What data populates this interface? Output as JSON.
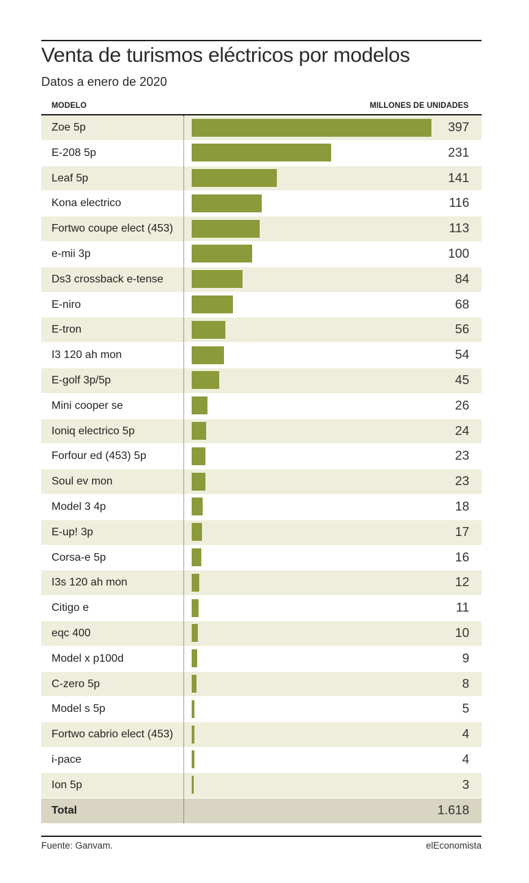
{
  "title": "Venta de turismos eléctricos por modelos",
  "subtitle": "Datos a enero de 2020",
  "column_headers": {
    "model": "MODELO",
    "units": "MILLONES DE UNIDADES"
  },
  "footer": {
    "source": "Fuente: Ganvam.",
    "brand": "elEconomista"
  },
  "colors": {
    "bar": "#8b9a3b",
    "row_alt": "#efeedc",
    "total_row": "#d8d6c2"
  },
  "chart_data": {
    "type": "bar",
    "orientation": "horizontal",
    "title": "Venta de turismos eléctricos por modelos",
    "subtitle": "Datos a enero de 2020",
    "xlabel": "MILLONES DE UNIDADES",
    "ylabel": "MODELO",
    "categories": [
      "Zoe 5p",
      "E-208 5p",
      "Leaf 5p",
      "Kona electrico",
      "Fortwo coupe elect (453)",
      "e-mii 3p",
      "Ds3 crossback e-tense",
      "E-niro",
      "E-tron",
      "I3 120 ah mon",
      "E-golf 3p/5p",
      "Mini cooper se",
      "Ioniq electrico 5p",
      "Forfour ed (453) 5p",
      "Soul ev mon",
      "Model 3 4p",
      "E-up! 3p",
      "Corsa-e 5p",
      "I3s 120 ah mon",
      "Citigo e",
      "eqc 400",
      "Model x p100d",
      "C-zero 5p",
      "Model s 5p",
      "Fortwo cabrio elect (453)",
      "i-pace",
      "Ion 5p"
    ],
    "values": [
      397,
      231,
      141,
      116,
      113,
      100,
      84,
      68,
      56,
      54,
      45,
      26,
      24,
      23,
      23,
      18,
      17,
      16,
      12,
      11,
      10,
      9,
      8,
      5,
      4,
      4,
      3
    ],
    "value_labels": [
      "397",
      "231",
      "141",
      "116",
      "113",
      "100",
      "84",
      "68",
      "56",
      "54",
      "45",
      "26",
      "24",
      "23",
      "23",
      "18",
      "17",
      "16",
      "12",
      "11",
      "10",
      "9",
      "8",
      "5",
      "4",
      "4",
      "3"
    ],
    "total": {
      "label": "Total",
      "value": 1618,
      "value_label": "1.618"
    },
    "xlim": [
      0,
      397
    ],
    "grid": false,
    "legend": "none"
  }
}
